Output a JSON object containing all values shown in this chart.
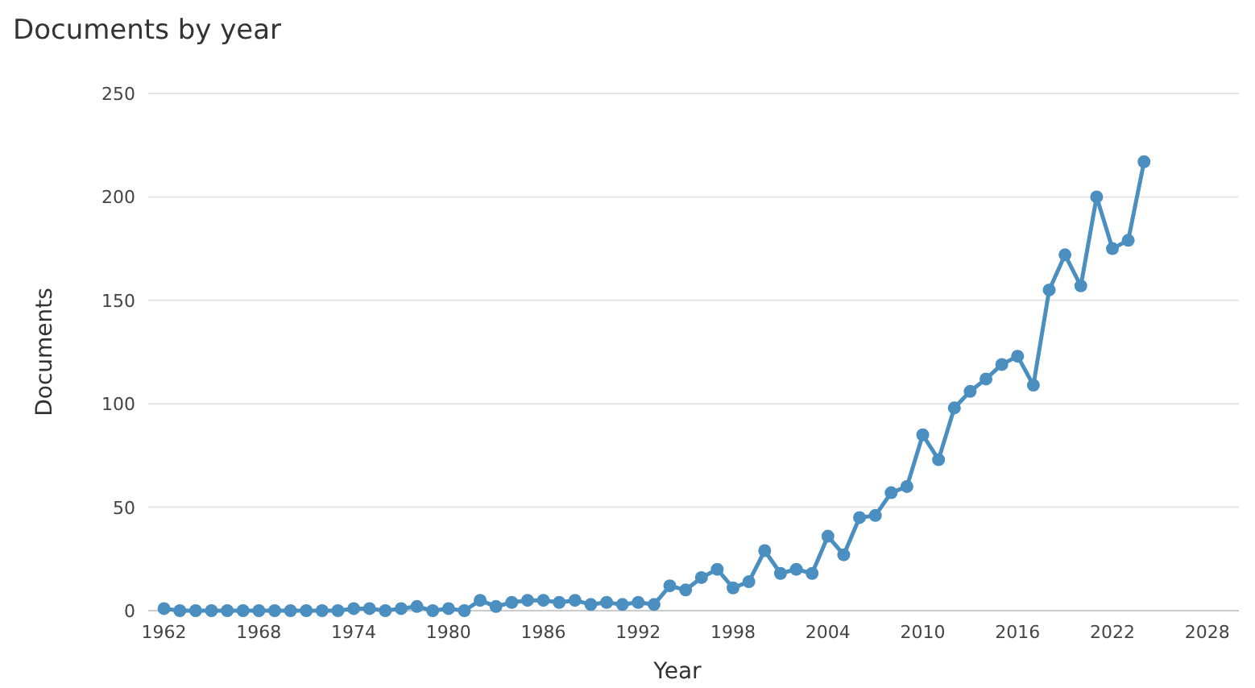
{
  "chart_data": {
    "type": "line",
    "title": "Documents by year",
    "xlabel": "Year",
    "ylabel": "Documents",
    "x": [
      1962,
      1963,
      1964,
      1965,
      1966,
      1967,
      1968,
      1969,
      1970,
      1971,
      1972,
      1973,
      1974,
      1975,
      1976,
      1977,
      1978,
      1979,
      1980,
      1981,
      1982,
      1983,
      1984,
      1985,
      1986,
      1987,
      1988,
      1989,
      1990,
      1991,
      1992,
      1993,
      1994,
      1995,
      1996,
      1997,
      1998,
      1999,
      2000,
      2001,
      2002,
      2003,
      2004,
      2005,
      2006,
      2007,
      2008,
      2009,
      2010,
      2011,
      2012,
      2013,
      2014,
      2015,
      2016,
      2017,
      2018,
      2019,
      2020,
      2021,
      2022,
      2023,
      2024
    ],
    "series": [
      {
        "color": "#4a8fbf",
        "values": [
          1,
          0,
          0,
          0,
          0,
          0,
          0,
          0,
          0,
          0,
          0,
          0,
          1,
          1,
          0,
          1,
          2,
          0,
          1,
          0,
          5,
          2,
          4,
          5,
          5,
          4,
          5,
          3,
          4,
          3,
          4,
          3,
          12,
          10,
          16,
          20,
          11,
          14,
          29,
          18,
          20,
          18,
          36,
          27,
          45,
          46,
          57,
          60,
          85,
          73,
          98,
          106,
          112,
          119,
          123,
          109,
          155,
          172,
          157,
          200,
          175,
          179,
          217
        ]
      }
    ],
    "xlim": [
      1961,
      2030
    ],
    "xticks": [
      1962,
      1968,
      1974,
      1980,
      1986,
      1992,
      1998,
      2004,
      2010,
      2016,
      2022,
      2028
    ],
    "ylim": [
      0,
      250
    ],
    "yticks": [
      0,
      50,
      100,
      150,
      200,
      250
    ],
    "grid": "y",
    "marker": "circle",
    "line_style": "solid"
  }
}
